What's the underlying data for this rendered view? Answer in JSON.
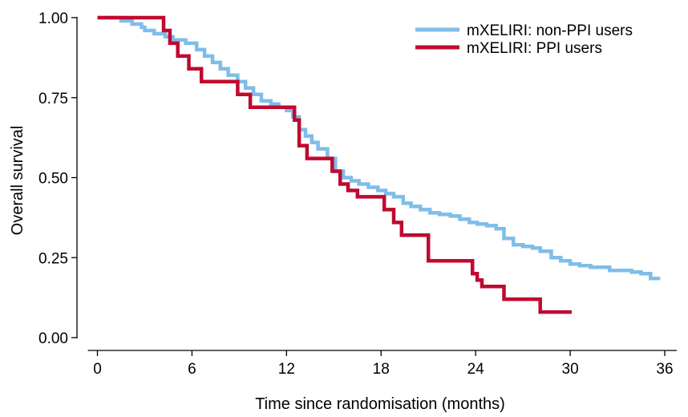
{
  "chart_data": {
    "type": "line",
    "subtype": "kaplan-meier step",
    "title": "",
    "xlabel": "Time since randomisation (months)",
    "ylabel": "Overall survival",
    "xlim": [
      0,
      36
    ],
    "ylim": [
      0,
      1
    ],
    "x_ticks": [
      0,
      6,
      12,
      18,
      24,
      30,
      36
    ],
    "x_tick_labels": [
      "0",
      "6",
      "12",
      "18",
      "24",
      "30",
      "36"
    ],
    "y_ticks": [
      0,
      0.25,
      0.5,
      0.75,
      1
    ],
    "y_tick_labels": [
      "0.00",
      "0.25",
      "0.50",
      "0.75",
      "1.00"
    ],
    "grid": false,
    "legend_position": "top-right",
    "series": [
      {
        "name": "mXELIRI: non-PPI users",
        "color": "#7fbde9",
        "x": [
          0,
          1.5,
          2.2,
          2.8,
          3.0,
          3.6,
          4.3,
          4.8,
          5.6,
          6.3,
          6.8,
          7.3,
          7.8,
          8.3,
          8.9,
          9.4,
          9.9,
          10.4,
          11.0,
          11.5,
          12.0,
          12.4,
          12.8,
          13.2,
          13.6,
          14.0,
          14.6,
          15.1,
          15.6,
          16.1,
          16.6,
          17.2,
          17.8,
          18.3,
          18.8,
          19.4,
          19.9,
          20.5,
          21.1,
          21.7,
          22.4,
          23.0,
          23.6,
          24.1,
          24.7,
          25.3,
          25.8,
          26.4,
          27.0,
          27.6,
          28.1,
          28.8,
          29.4,
          30.0,
          30.6,
          31.3,
          31.9,
          32.5,
          33.2,
          33.9,
          34.5,
          35.1,
          35.6
        ],
        "y": [
          1.0,
          0.99,
          0.98,
          0.97,
          0.96,
          0.95,
          0.94,
          0.93,
          0.92,
          0.9,
          0.88,
          0.86,
          0.84,
          0.82,
          0.8,
          0.78,
          0.76,
          0.74,
          0.73,
          0.72,
          0.71,
          0.69,
          0.65,
          0.63,
          0.61,
          0.59,
          0.56,
          0.52,
          0.5,
          0.49,
          0.48,
          0.47,
          0.46,
          0.45,
          0.44,
          0.42,
          0.41,
          0.4,
          0.39,
          0.385,
          0.38,
          0.37,
          0.36,
          0.355,
          0.35,
          0.34,
          0.31,
          0.29,
          0.285,
          0.28,
          0.27,
          0.25,
          0.24,
          0.23,
          0.225,
          0.22,
          0.22,
          0.21,
          0.21,
          0.205,
          0.2,
          0.185,
          0.18
        ]
      },
      {
        "name": "mXELIRI: PPI users",
        "color": "#bf0a30",
        "x": [
          0,
          4.2,
          4.6,
          5.1,
          5.8,
          6.6,
          8.9,
          9.7,
          12.5,
          12.8,
          13.3,
          14.9,
          15.4,
          15.9,
          16.5,
          18.2,
          18.8,
          19.3,
          21.0,
          23.8,
          24.1,
          24.4,
          25.8,
          28.1,
          30.1
        ],
        "y": [
          1.0,
          0.96,
          0.92,
          0.88,
          0.84,
          0.8,
          0.76,
          0.72,
          0.68,
          0.6,
          0.56,
          0.52,
          0.48,
          0.46,
          0.44,
          0.4,
          0.36,
          0.32,
          0.24,
          0.2,
          0.18,
          0.16,
          0.12,
          0.08,
          0.08
        ]
      }
    ]
  }
}
